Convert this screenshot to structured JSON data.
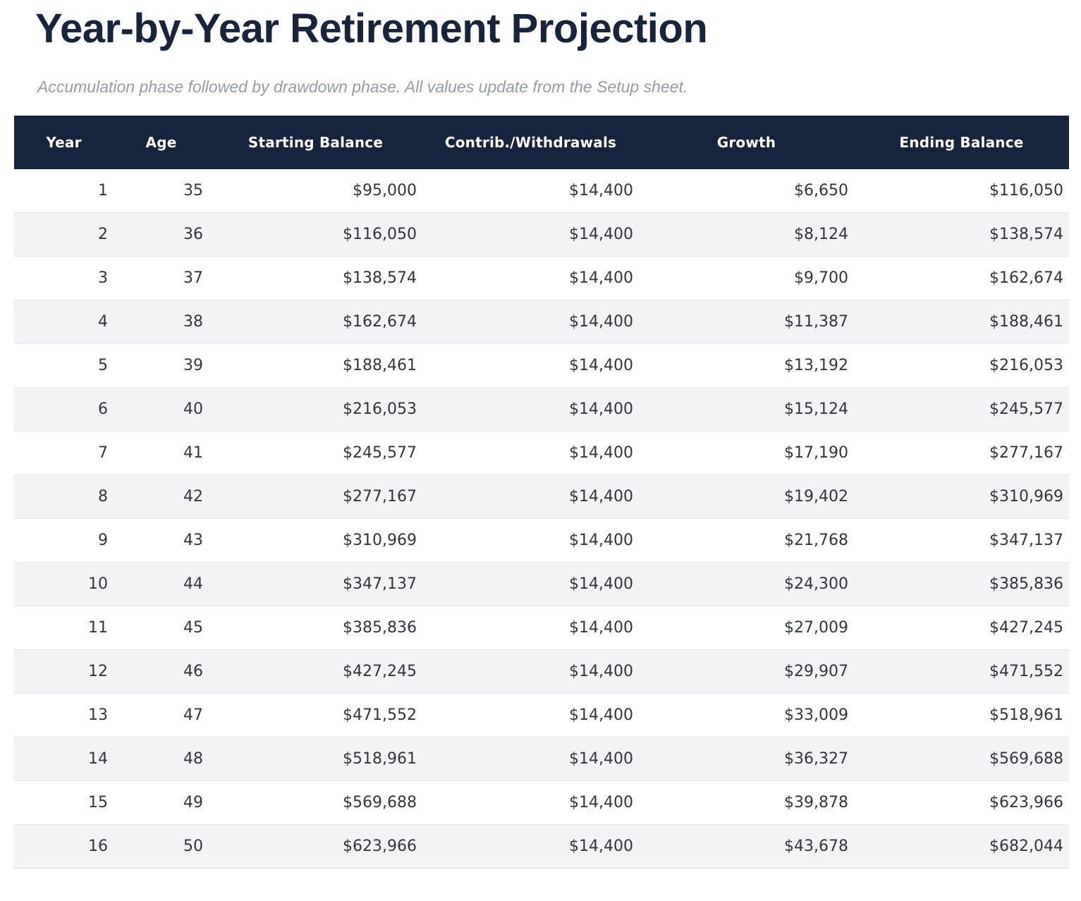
{
  "page": {
    "title": "Year-by-Year Retirement Projection",
    "subtitle": "Accumulation phase followed by drawdown phase. All values update from the Setup sheet."
  },
  "table": {
    "columns": [
      {
        "key": "year",
        "label": "Year"
      },
      {
        "key": "age",
        "label": "Age"
      },
      {
        "key": "starting-balance",
        "label": "Starting Balance"
      },
      {
        "key": "contrib-withdrawals",
        "label": "Contrib./Withdrawals"
      },
      {
        "key": "growth",
        "label": "Growth"
      },
      {
        "key": "ending-balance",
        "label": "Ending Balance"
      }
    ],
    "rows": [
      [
        "1",
        "35",
        "$95,000",
        "$14,400",
        "$6,650",
        "$116,050"
      ],
      [
        "2",
        "36",
        "$116,050",
        "$14,400",
        "$8,124",
        "$138,574"
      ],
      [
        "3",
        "37",
        "$138,574",
        "$14,400",
        "$9,700",
        "$162,674"
      ],
      [
        "4",
        "38",
        "$162,674",
        "$14,400",
        "$11,387",
        "$188,461"
      ],
      [
        "5",
        "39",
        "$188,461",
        "$14,400",
        "$13,192",
        "$216,053"
      ],
      [
        "6",
        "40",
        "$216,053",
        "$14,400",
        "$15,124",
        "$245,577"
      ],
      [
        "7",
        "41",
        "$245,577",
        "$14,400",
        "$17,190",
        "$277,167"
      ],
      [
        "8",
        "42",
        "$277,167",
        "$14,400",
        "$19,402",
        "$310,969"
      ],
      [
        "9",
        "43",
        "$310,969",
        "$14,400",
        "$21,768",
        "$347,137"
      ],
      [
        "10",
        "44",
        "$347,137",
        "$14,400",
        "$24,300",
        "$385,836"
      ],
      [
        "11",
        "45",
        "$385,836",
        "$14,400",
        "$27,009",
        "$427,245"
      ],
      [
        "12",
        "46",
        "$427,245",
        "$14,400",
        "$29,907",
        "$471,552"
      ],
      [
        "13",
        "47",
        "$471,552",
        "$14,400",
        "$33,009",
        "$518,961"
      ],
      [
        "14",
        "48",
        "$518,961",
        "$14,400",
        "$36,327",
        "$569,688"
      ],
      [
        "15",
        "49",
        "$569,688",
        "$14,400",
        "$39,878",
        "$623,966"
      ],
      [
        "16",
        "50",
        "$623,966",
        "$14,400",
        "$43,678",
        "$682,044"
      ]
    ]
  },
  "colors": {
    "header_bg": "#16243d",
    "title_text": "#16243d",
    "subtitle_text": "#939ca8",
    "row_alt_bg": "#f2f3f5",
    "row_border": "#e4e6ea",
    "cell_text": "#31353d"
  }
}
